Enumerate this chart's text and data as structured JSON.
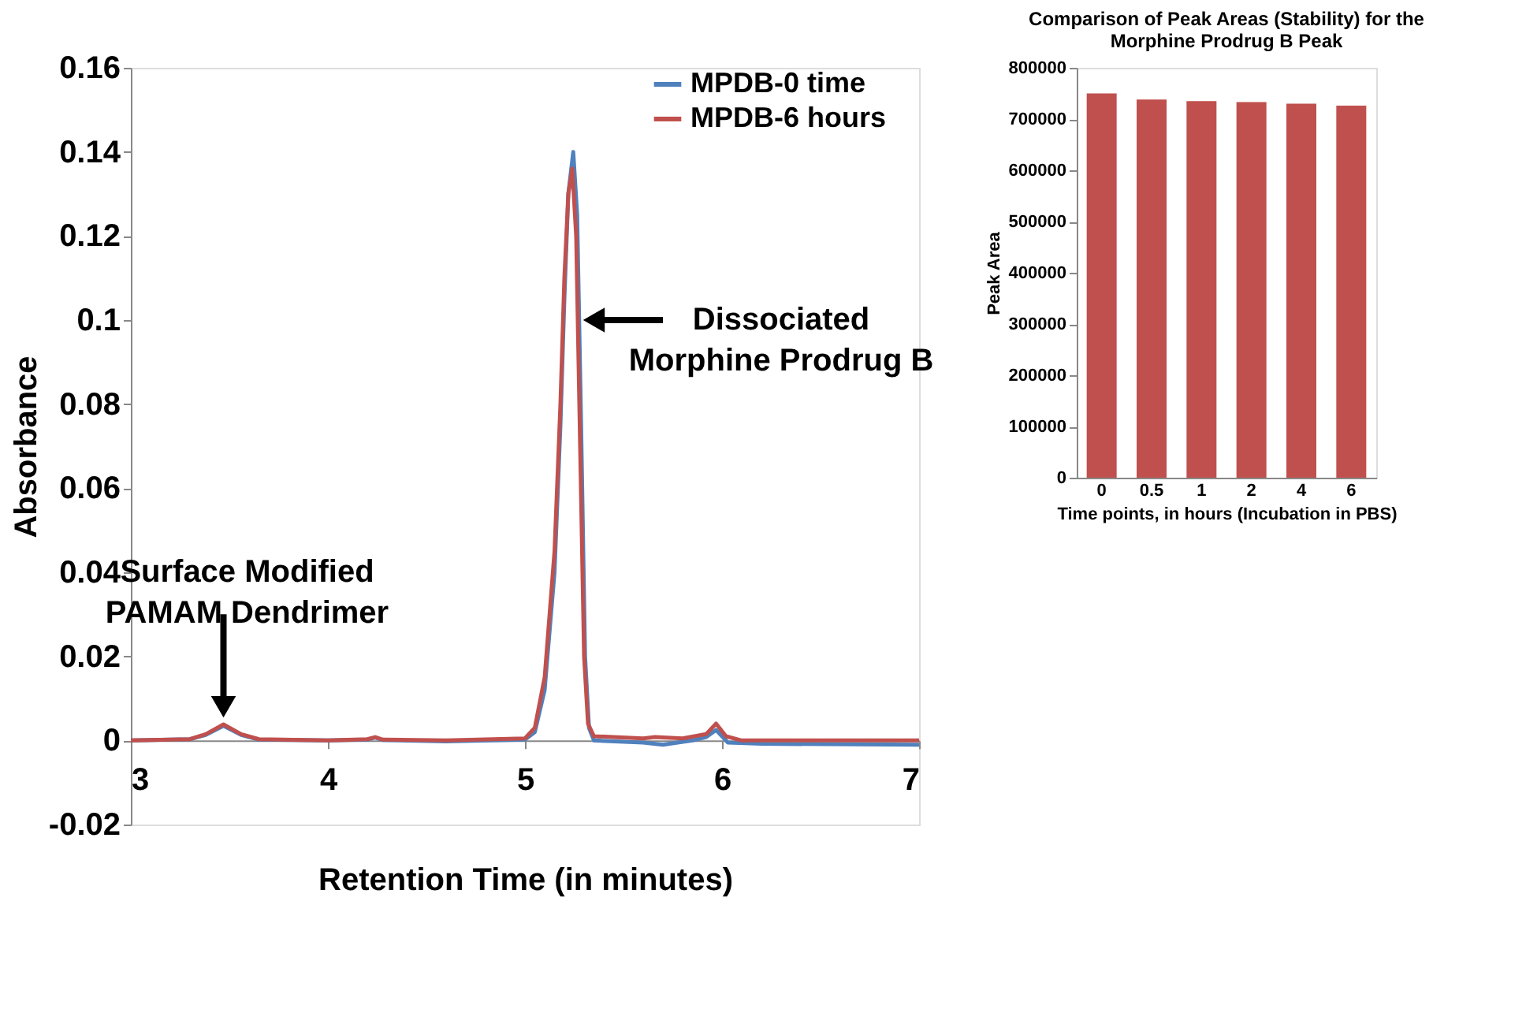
{
  "chart_data": [
    {
      "type": "line",
      "xlabel": "Retention Time (in minutes)",
      "ylabel": "Absorbance",
      "xlim": [
        3,
        7
      ],
      "xticks": [
        3,
        4,
        5,
        6,
        7
      ],
      "ylim": [
        -0.02,
        0.16
      ],
      "yticks": [
        -0.02,
        0,
        0.02,
        0.04,
        0.06,
        0.08,
        0.1,
        0.12,
        0.14,
        0.16
      ],
      "grid": false,
      "legend": "top right",
      "line_style": "solid",
      "marker": "none",
      "series": [
        {
          "name": "MPDB-0 time",
          "color": "#4f81bd",
          "x": [
            3.0,
            3.3,
            3.38,
            3.47,
            3.56,
            3.65,
            4.0,
            4.2,
            4.24,
            4.28,
            4.6,
            5.0,
            5.05,
            5.1,
            5.15,
            5.18,
            5.2,
            5.22,
            5.245,
            5.265,
            5.285,
            5.305,
            5.325,
            5.35,
            5.6,
            5.7,
            5.85,
            5.92,
            5.97,
            6.03,
            6.2,
            7.0
          ],
          "values": [
            0,
            0.0003,
            0.0013,
            0.0035,
            0.0013,
            0.0002,
            0,
            0.0002,
            0.0007,
            0.0001,
            -0.0002,
            0.0002,
            0.002,
            0.012,
            0.04,
            0.075,
            0.105,
            0.13,
            0.14,
            0.125,
            0.075,
            0.02,
            0.003,
            0,
            -0.0005,
            -0.001,
            0,
            0.0008,
            0.0025,
            -0.0005,
            -0.0008,
            -0.001
          ]
        },
        {
          "name": "MPDB-6 hours",
          "color": "#c0504d",
          "x": [
            3.0,
            3.3,
            3.38,
            3.47,
            3.56,
            3.65,
            4.0,
            4.2,
            4.24,
            4.28,
            4.6,
            5.0,
            5.05,
            5.1,
            5.15,
            5.18,
            5.2,
            5.22,
            5.24,
            5.26,
            5.28,
            5.3,
            5.32,
            5.35,
            5.6,
            5.66,
            5.8,
            5.92,
            5.97,
            6.02,
            6.1,
            7.0
          ],
          "values": [
            0,
            0.0003,
            0.0015,
            0.0038,
            0.0015,
            0.0003,
            0,
            0.0003,
            0.0008,
            0.0002,
            0,
            0.0005,
            0.003,
            0.015,
            0.045,
            0.08,
            0.11,
            0.13,
            0.136,
            0.12,
            0.07,
            0.02,
            0.004,
            0.001,
            0.0005,
            0.0008,
            0.0005,
            0.0015,
            0.004,
            0.001,
            0,
            0
          ]
        }
      ],
      "annotations": [
        {
          "text": "Dissociated\nMorphine Prodrug B",
          "x": 5.3,
          "y": 0.1
        },
        {
          "text": "Surface Modified\nPAMAM Dendrimer",
          "x": 3.47,
          "y": 0.004
        }
      ]
    },
    {
      "type": "bar",
      "title": "Comparison of Peak Areas (Stability) for the\nMorphine Prodrug B Peak",
      "xlabel": "Time points, in hours (Incubation in PBS)",
      "ylabel": "Peak Area",
      "categories": [
        "0",
        "0.5",
        "1",
        "2",
        "4",
        "6"
      ],
      "values": [
        750000,
        738000,
        735000,
        733000,
        730000,
        726000
      ],
      "color": "#c0504d",
      "ylim": [
        0,
        800000
      ],
      "yticks": [
        0,
        100000,
        200000,
        300000,
        400000,
        500000,
        600000,
        700000,
        800000
      ],
      "grid": false
    }
  ]
}
